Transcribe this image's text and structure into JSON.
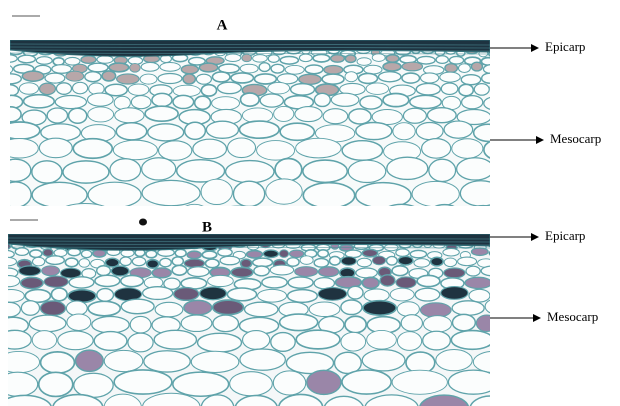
{
  "panels": [
    {
      "label": "A",
      "annotations": [
        "Epicarp",
        "Mesocarp"
      ]
    },
    {
      "label": "B",
      "annotations": [
        "Epicarp",
        "Mesocarp"
      ]
    }
  ]
}
